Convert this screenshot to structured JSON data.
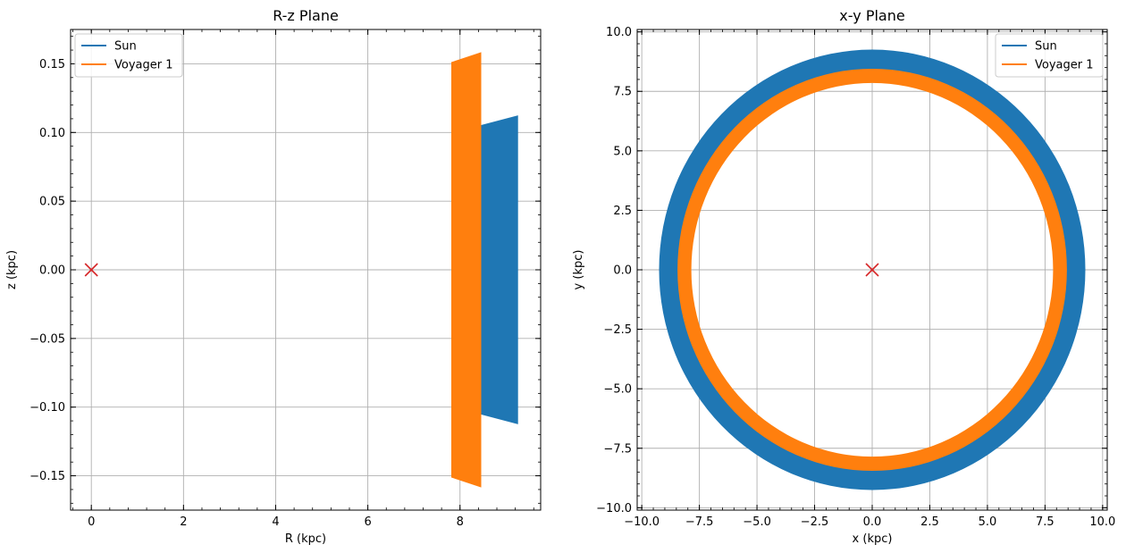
{
  "chart_data": [
    {
      "type": "line",
      "title": "R-z Plane",
      "xlabel": "R (kpc)",
      "ylabel": "z (kpc)",
      "xlim": [
        -0.45,
        9.75
      ],
      "ylim": [
        -0.175,
        0.175
      ],
      "xticks": [
        0,
        2,
        4,
        6,
        8
      ],
      "xtick_labels": [
        "0",
        "2",
        "4",
        "6",
        "8"
      ],
      "yticks": [
        -0.15,
        -0.1,
        -0.05,
        0.0,
        0.05,
        0.1,
        0.15
      ],
      "ytick_labels": [
        "−0.15",
        "−0.10",
        "−0.05",
        "0.00",
        "0.05",
        "0.10",
        "0.15"
      ],
      "grid": true,
      "legend_position": "upper-left",
      "series": [
        {
          "name": "Sun",
          "color": "#1f77b4",
          "kind": "filled_band",
          "polygon": [
            [
              8.45,
              0.105
            ],
            [
              9.25,
              0.112
            ],
            [
              9.25,
              -0.112
            ],
            [
              8.45,
              -0.105
            ]
          ]
        },
        {
          "name": "Voyager 1",
          "color": "#ff7f0e",
          "kind": "filled_band",
          "polygon": [
            [
              7.82,
              0.151
            ],
            [
              8.45,
              0.158
            ],
            [
              8.45,
              -0.158
            ],
            [
              7.82,
              -0.151
            ]
          ]
        }
      ],
      "marker": {
        "symbol": "x",
        "color": "#d62728",
        "x": 0,
        "y": 0
      }
    },
    {
      "type": "line",
      "title": "x-y Plane",
      "xlabel": "x (kpc)",
      "ylabel": "y (kpc)",
      "xlim": [
        -10.2,
        10.2
      ],
      "ylim": [
        -10.1,
        10.1
      ],
      "xticks": [
        -10,
        -7.5,
        -5,
        -2.5,
        0,
        2.5,
        5,
        7.5,
        10
      ],
      "xtick_labels": [
        "−10.0",
        "−7.5",
        "−5.0",
        "−2.5",
        "0.0",
        "2.5",
        "5.0",
        "7.5",
        "10.0"
      ],
      "yticks": [
        -10,
        -7.5,
        -5,
        -2.5,
        0,
        2.5,
        5,
        7.5,
        10
      ],
      "ytick_labels": [
        "−10.0",
        "−7.5",
        "−5.0",
        "−2.5",
        "0.0",
        "2.5",
        "5.0",
        "7.5",
        "10.0"
      ],
      "grid": true,
      "legend_position": "upper-right",
      "series": [
        {
          "name": "Sun",
          "color": "#1f77b4",
          "kind": "annulus",
          "r_inner": 8.4,
          "r_outer": 9.25
        },
        {
          "name": "Voyager 1",
          "color": "#ff7f0e",
          "kind": "annulus",
          "r_inner": 7.85,
          "r_outer": 8.45
        }
      ],
      "marker": {
        "symbol": "x",
        "color": "#d62728",
        "x": 0,
        "y": 0
      }
    }
  ]
}
